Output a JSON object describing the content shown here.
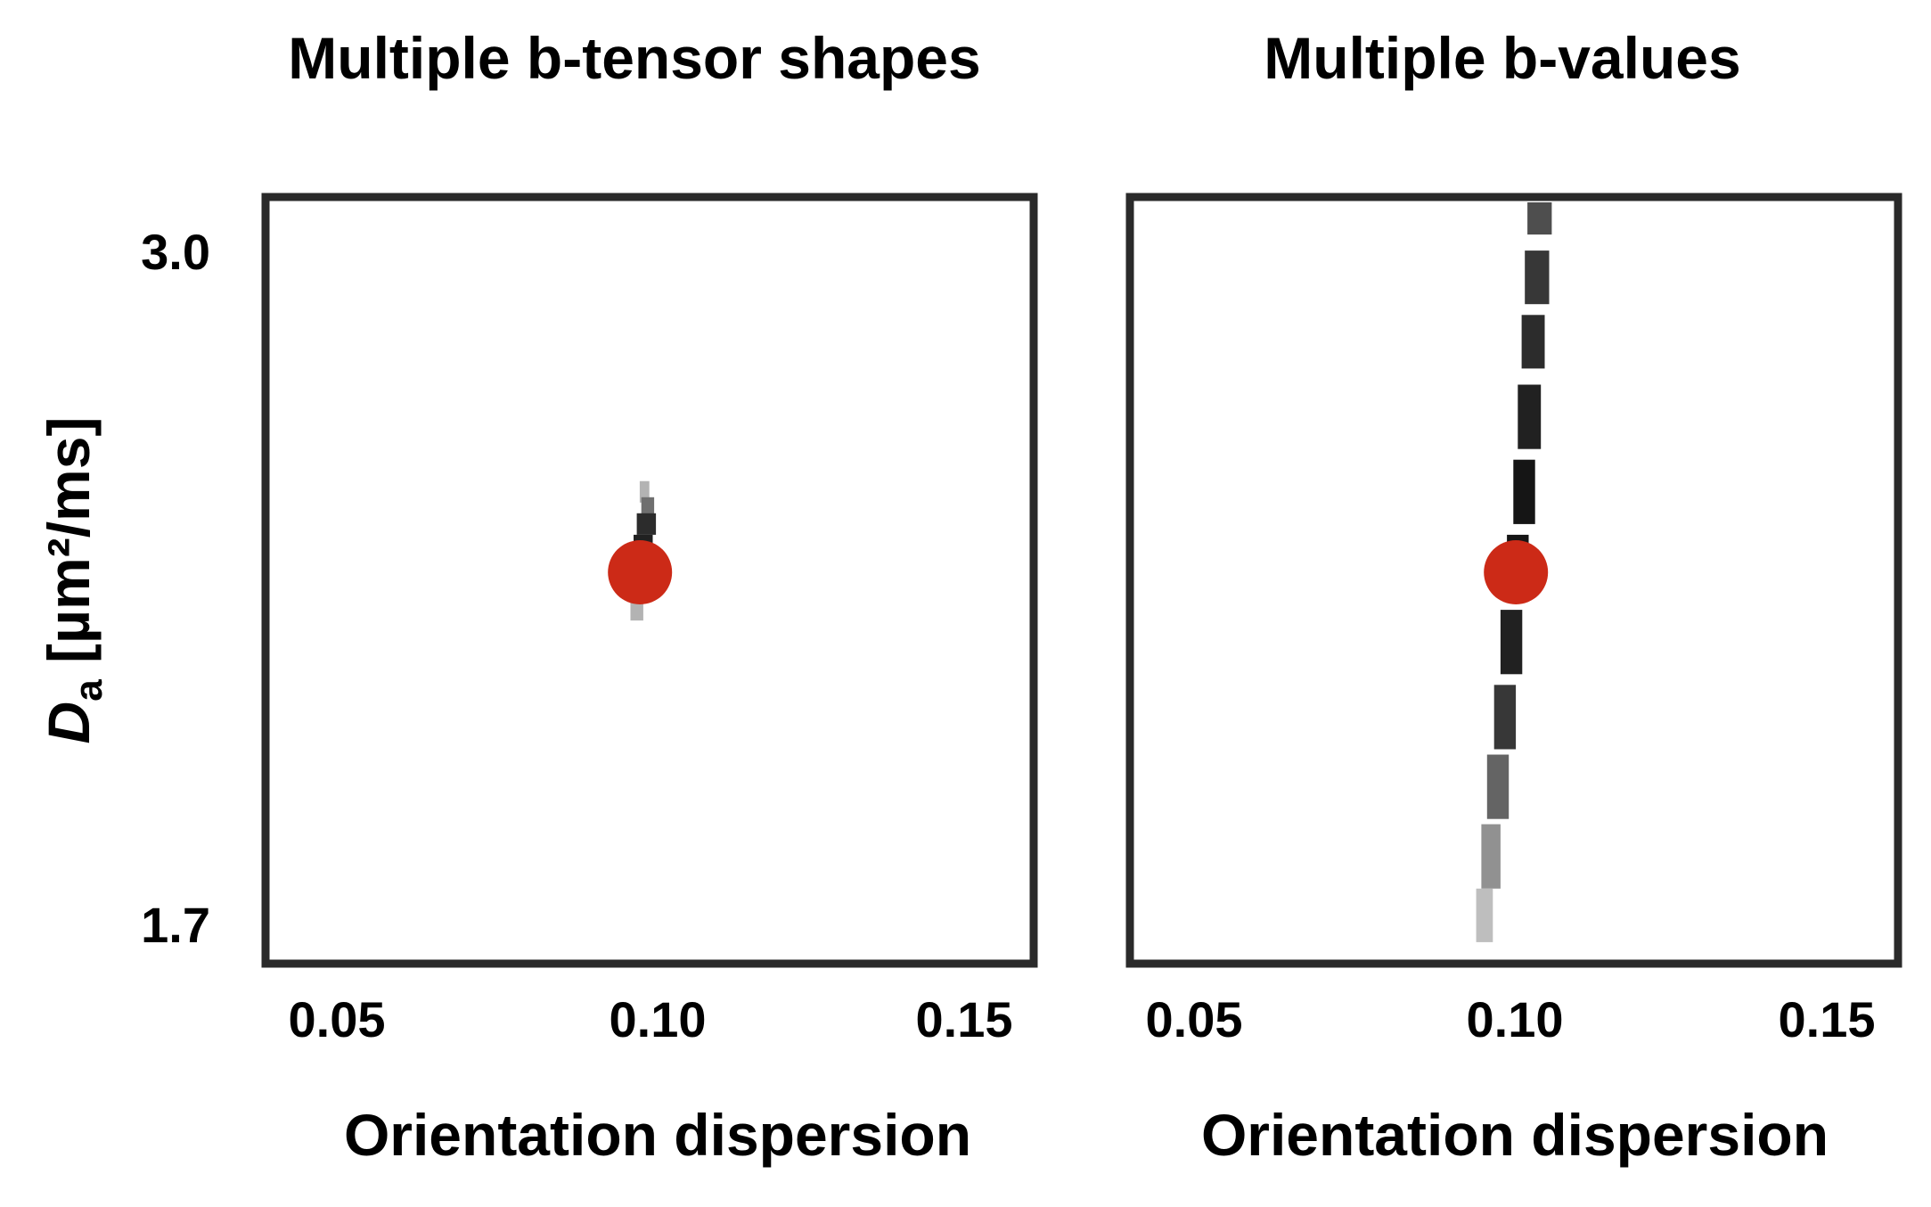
{
  "chart_data": [
    {
      "type": "heatmap",
      "title": "Multiple b-tensor shapes",
      "xlabel": "Orientation dispersion",
      "ylabel": "D",
      "ylabel_subscript": "a",
      "ylabel_units": " [µm²/ms]",
      "xlim": [
        0.04,
        0.16
      ],
      "ylim": [
        1.65,
        3.08
      ],
      "x_ticks": [
        0.05,
        0.1,
        0.15
      ],
      "x_tick_labels": [
        "0.05",
        "0.10",
        "0.15"
      ],
      "y_ticks": [
        3.0,
        1.7
      ],
      "y_tick_labels": [
        "3.0",
        "1.7"
      ],
      "true_value": {
        "x": 0.0985,
        "y": 2.38,
        "color": "#cc2a17"
      },
      "density": [
        {
          "x": 0.0992,
          "y": 2.53,
          "w": 0.0015,
          "h": 0.04,
          "v": 0.25
        },
        {
          "x": 0.0997,
          "y": 2.5,
          "w": 0.002,
          "h": 0.04,
          "v": 0.55
        },
        {
          "x": 0.0995,
          "y": 2.47,
          "w": 0.003,
          "h": 0.04,
          "v": 0.85
        },
        {
          "x": 0.099,
          "y": 2.43,
          "w": 0.003,
          "h": 0.04,
          "v": 0.9
        },
        {
          "x": 0.0988,
          "y": 2.39,
          "w": 0.003,
          "h": 0.04,
          "v": 0.8
        },
        {
          "x": 0.0985,
          "y": 2.35,
          "w": 0.003,
          "h": 0.04,
          "v": 0.55
        },
        {
          "x": 0.098,
          "y": 2.31,
          "w": 0.002,
          "h": 0.04,
          "v": 0.25
        }
      ]
    },
    {
      "type": "heatmap",
      "title": "Multiple b-values",
      "xlabel": "Orientation dispersion",
      "xlim": [
        0.04,
        0.16
      ],
      "ylim": [
        1.65,
        3.08
      ],
      "x_ticks": [
        0.05,
        0.1,
        0.15
      ],
      "x_tick_labels": [
        "0.05",
        "0.10",
        "0.15"
      ],
      "true_value": {
        "x": 0.1003,
        "y": 2.38,
        "color": "#cc2a17"
      },
      "density": [
        {
          "x": 0.104,
          "y": 3.04,
          "w": 0.0038,
          "h": 0.06,
          "v": 0.7
        },
        {
          "x": 0.1036,
          "y": 2.93,
          "w": 0.0038,
          "h": 0.1,
          "v": 0.8
        },
        {
          "x": 0.103,
          "y": 2.81,
          "w": 0.0036,
          "h": 0.1,
          "v": 0.85
        },
        {
          "x": 0.1024,
          "y": 2.67,
          "w": 0.0036,
          "h": 0.12,
          "v": 0.9
        },
        {
          "x": 0.1016,
          "y": 2.53,
          "w": 0.0034,
          "h": 0.12,
          "v": 0.95
        },
        {
          "x": 0.1006,
          "y": 2.39,
          "w": 0.0034,
          "h": 0.12,
          "v": 0.95
        },
        {
          "x": 0.0996,
          "y": 2.25,
          "w": 0.0034,
          "h": 0.12,
          "v": 0.9
        },
        {
          "x": 0.0986,
          "y": 2.11,
          "w": 0.0034,
          "h": 0.12,
          "v": 0.8
        },
        {
          "x": 0.0975,
          "y": 1.98,
          "w": 0.0034,
          "h": 0.12,
          "v": 0.6
        },
        {
          "x": 0.0964,
          "y": 1.85,
          "w": 0.003,
          "h": 0.12,
          "v": 0.4
        },
        {
          "x": 0.0954,
          "y": 1.74,
          "w": 0.0026,
          "h": 0.1,
          "v": 0.2
        }
      ]
    }
  ]
}
